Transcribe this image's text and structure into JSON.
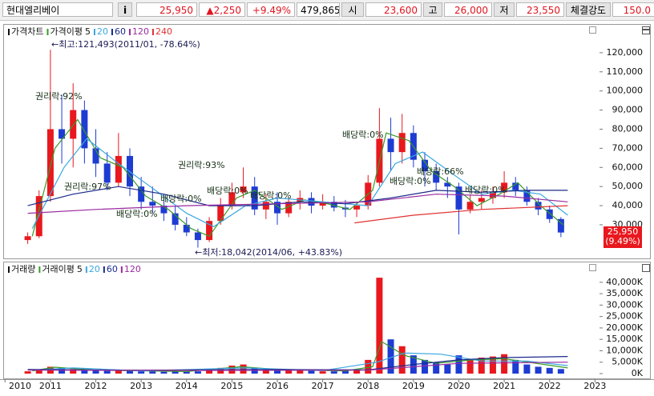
{
  "header": {
    "stock_name": "현대엘리베이",
    "info_button": "i",
    "price": "25,950",
    "change": "▲2,250",
    "change_rate": "+9.49%",
    "volume": "479,865",
    "open_label": "시",
    "open": "23,600",
    "high_label": "고",
    "high": "26,000",
    "low_label": "저",
    "low": "23,550",
    "strength_label": "체결강도",
    "strength": "150.0"
  },
  "chart_data": [
    {
      "type": "candlestick",
      "title": "가격차트",
      "ma_label": "가격이평",
      "up_color": "#e8181e",
      "down_color": "#1e3cd2",
      "xlim": [
        2010.03,
        2023.1
      ],
      "ylim": [
        14500,
        132500
      ],
      "yticks": [
        {
          "value": 30000,
          "label": "30,000"
        },
        {
          "value": 40000,
          "label": "40,000"
        },
        {
          "value": 50000,
          "label": "50,000"
        },
        {
          "value": 60000,
          "label": "60,000"
        },
        {
          "value": 70000,
          "label": "70,000"
        },
        {
          "value": 80000,
          "label": "80,000"
        },
        {
          "value": 90000,
          "label": "90,000"
        },
        {
          "value": 100000,
          "label": "100,000"
        },
        {
          "value": 110000,
          "label": "110,000"
        },
        {
          "value": 120000,
          "label": "120,000"
        }
      ],
      "x": [
        2010.5,
        2010.75,
        2011,
        2011.25,
        2011.5,
        2011.75,
        2012,
        2012.25,
        2012.5,
        2012.75,
        2013,
        2013.25,
        2013.5,
        2013.75,
        2014,
        2014.25,
        2014.5,
        2014.75,
        2015,
        2015.25,
        2015.5,
        2015.75,
        2016,
        2016.25,
        2016.5,
        2016.75,
        2017,
        2017.25,
        2017.5,
        2017.75,
        2018,
        2018.25,
        2018.5,
        2018.75,
        2019,
        2019.25,
        2019.5,
        2019.75,
        2020,
        2020.25,
        2020.5,
        2020.75,
        2021,
        2021.25,
        2021.5,
        2021.75,
        2022,
        2022.25
      ],
      "open": [
        22000,
        24000,
        45000,
        80000,
        75000,
        90000,
        70000,
        62000,
        52000,
        66000,
        50000,
        42000,
        40000,
        36000,
        30000,
        26000,
        22000,
        32000,
        40000,
        47000,
        50000,
        38000,
        42000,
        36000,
        42000,
        44000,
        40000,
        42000,
        39000,
        38000,
        40000,
        52000,
        75000,
        68000,
        78000,
        64000,
        58000,
        52000,
        50000,
        38000,
        42000,
        44000,
        47000,
        52000,
        48000,
        42000,
        38000,
        33000
      ],
      "high": [
        26000,
        48000,
        121493,
        98000,
        104000,
        95000,
        80000,
        68000,
        78000,
        70000,
        55000,
        50000,
        46000,
        40000,
        34000,
        28000,
        34000,
        44000,
        52000,
        60000,
        55000,
        46000,
        47000,
        44000,
        48000,
        47000,
        46000,
        45000,
        43000,
        42000,
        56000,
        91000,
        86000,
        88000,
        82000,
        68000,
        62000,
        55000,
        52000,
        46000,
        48000,
        50000,
        58000,
        55000,
        50000,
        44000,
        40000,
        34000
      ],
      "low": [
        20000,
        23000,
        42000,
        62000,
        60000,
        62000,
        55000,
        48000,
        50000,
        45000,
        38000,
        36000,
        32000,
        27000,
        24000,
        18042,
        21000,
        30000,
        38000,
        44000,
        35000,
        33000,
        30000,
        34000,
        38000,
        36000,
        38000,
        37000,
        34000,
        34000,
        38000,
        50000,
        58000,
        62000,
        60000,
        50000,
        48000,
        44000,
        25000,
        36000,
        38000,
        41000,
        44000,
        45000,
        40000,
        35000,
        31000,
        23550
      ],
      "close": [
        24000,
        45000,
        80000,
        75000,
        90000,
        70000,
        62000,
        52000,
        66000,
        50000,
        42000,
        40000,
        36000,
        30000,
        26000,
        22000,
        32000,
        40000,
        47000,
        50000,
        38000,
        42000,
        36000,
        42000,
        44000,
        40000,
        42000,
        39000,
        38000,
        40000,
        52000,
        75000,
        68000,
        78000,
        64000,
        58000,
        52000,
        50000,
        38000,
        42000,
        44000,
        47000,
        52000,
        48000,
        42000,
        38000,
        33000,
        25950
      ],
      "series": [
        {
          "name": "5",
          "color": "#3a9a2a",
          "x": [
            2010.6,
            2011.1,
            2011.6,
            2012.1,
            2012.6,
            2013.1,
            2013.6,
            2014.1,
            2014.5,
            2015.1,
            2015.5,
            2016.1,
            2016.6,
            2017.1,
            2017.6,
            2018.1,
            2018.4,
            2018.9,
            2019.4,
            2019.9,
            2020.4,
            2020.9,
            2021.3,
            2021.8,
            2022.3
          ],
          "values": [
            24000,
            70000,
            85000,
            65000,
            60000,
            45000,
            38000,
            28000,
            24000,
            44000,
            48000,
            38000,
            43000,
            41000,
            38000,
            48000,
            78000,
            74000,
            58000,
            50000,
            40000,
            46000,
            52000,
            40000,
            30000
          ]
        },
        {
          "name": "20",
          "color": "#3aa7e0",
          "x": [
            2010.6,
            2011.3,
            2011.8,
            2012.5,
            2013.2,
            2014,
            2014.6,
            2015.3,
            2016,
            2017,
            2018,
            2018.6,
            2019.2,
            2019.9,
            2020.5,
            2021.2,
            2021.8,
            2022.4
          ],
          "values": [
            28000,
            60000,
            75000,
            62000,
            50000,
            36000,
            29000,
            40000,
            44000,
            42000,
            40000,
            62000,
            68000,
            56000,
            46000,
            48000,
            46000,
            35000
          ]
        },
        {
          "name": "60",
          "color": "#1a2a8a",
          "x": [
            2010.5,
            2011.5,
            2012.5,
            2013.5,
            2014.5,
            2015.5,
            2016.5,
            2017.5,
            2018.5,
            2019.5,
            2020.5,
            2021.5,
            2022.4
          ],
          "values": [
            40000,
            46000,
            50000,
            46000,
            40000,
            40000,
            42000,
            41000,
            44000,
            48000,
            47000,
            48000,
            48000
          ]
        },
        {
          "name": "120",
          "color": "#9a2aa0",
          "x": [
            2010.5,
            2012,
            2014,
            2016,
            2018,
            2019.5,
            2021,
            2022.4
          ],
          "values": [
            36000,
            38000,
            40000,
            41000,
            42000,
            46000,
            45000,
            42000
          ]
        },
        {
          "name": "240",
          "color": "#e03030",
          "x": [
            2017.7,
            2019,
            2020.5,
            2022.4
          ],
          "values": [
            31000,
            35000,
            38000,
            40000
          ]
        }
      ],
      "price_tag": [
        "25,950",
        "(9.49%)"
      ],
      "annotations": [
        "←최고:121,493(2011/01, -78.64%)",
        "←최저:18,042(2014/06, +43.83%)",
        "권리락:92%",
        "권리락:97%",
        "권리락:93%",
        "배당락:0%",
        "배당락:0%",
        "배당락:0%",
        "배당락:0%",
        "배당락:0%",
        "배당락:0%",
        "배당락:66%",
        "배당락:0%"
      ]
    },
    {
      "type": "bar",
      "title": "거래량",
      "ma_label": "거래이평",
      "up_color": "#e8181e",
      "down_color": "#1e3cd2",
      "xlim": [
        2010.03,
        2023.1
      ],
      "ylim": [
        0,
        44500
      ],
      "xticks": [
        2010,
        2011,
        2012,
        2013,
        2014,
        2015,
        2016,
        2017,
        2018,
        2019,
        2020,
        2021,
        2022,
        2023
      ],
      "yticks": [
        {
          "value": 0,
          "label": "0K"
        },
        {
          "value": 5000,
          "label": "5,000K"
        },
        {
          "value": 10000,
          "label": "10,000K"
        },
        {
          "value": 15000,
          "label": "15,000K"
        },
        {
          "value": 20000,
          "label": "20,000K"
        },
        {
          "value": 25000,
          "label": "25,000K"
        },
        {
          "value": 30000,
          "label": "30,000K"
        },
        {
          "value": 35000,
          "label": "35,000K"
        },
        {
          "value": 40000,
          "label": "40,000K"
        }
      ],
      "values": [
        1000,
        1500,
        3000,
        2500,
        2000,
        1800,
        1500,
        1200,
        1500,
        1200,
        1000,
        1000,
        800,
        900,
        800,
        1000,
        1500,
        2500,
        3500,
        4000,
        2500,
        1800,
        2000,
        1500,
        1500,
        1200,
        1000,
        1000,
        1200,
        1500,
        6000,
        42000,
        15000,
        12000,
        8000,
        6000,
        5000,
        4000,
        8000,
        6000,
        7000,
        7500,
        8500,
        6000,
        4000,
        3000,
        2500,
        2000
      ],
      "series": [
        {
          "name": "5",
          "color": "#3a9a2a",
          "x": [
            2010.6,
            2011.1,
            2012,
            2014,
            2015.2,
            2016,
            2017.5,
            2018.1,
            2018.3,
            2018.8,
            2019.5,
            2020.3,
            2021,
            2022.4
          ],
          "values": [
            1200,
            2800,
            1500,
            900,
            3000,
            1800,
            1200,
            3000,
            14000,
            8000,
            4500,
            6000,
            6500,
            2500
          ]
        },
        {
          "name": "20",
          "color": "#3aa7e0",
          "x": [
            2010.6,
            2011.5,
            2013,
            2015.3,
            2017,
            2018.2,
            2018.8,
            2019.6,
            2020.5,
            2021.5,
            2022.4
          ],
          "values": [
            1500,
            2500,
            1200,
            2500,
            1300,
            5000,
            9000,
            8500,
            5500,
            5500,
            3500
          ]
        },
        {
          "name": "60",
          "color": "#1a2a8a",
          "x": [
            2010.5,
            2013,
            2016,
            2018,
            2019,
            2020,
            2021,
            2022.4
          ],
          "values": [
            1800,
            1500,
            1800,
            1600,
            4000,
            6000,
            7000,
            7500
          ]
        },
        {
          "name": "120",
          "color": "#9a2aa0",
          "x": [
            2010.5,
            2014,
            2018,
            2020,
            2022.4
          ],
          "values": [
            1500,
            1400,
            1500,
            4500,
            5000
          ]
        }
      ]
    }
  ]
}
